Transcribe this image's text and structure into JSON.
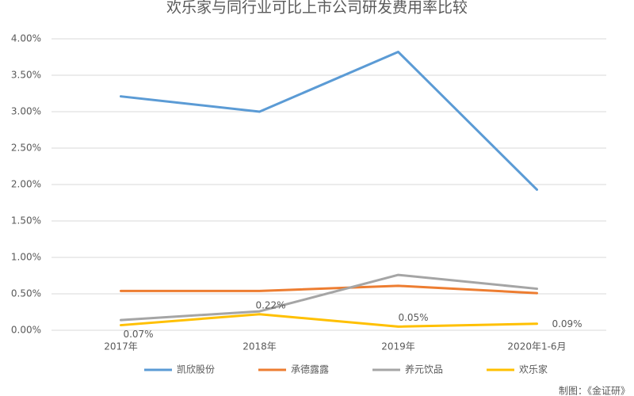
{
  "chart_data": {
    "type": "line",
    "title": "欢乐家与同行业可比上市公司研发费用率比较",
    "categories": [
      "2017年",
      "2018年",
      "2019年",
      "2020年1-6月"
    ],
    "series": [
      {
        "name": "凯欣股份",
        "color": "#5b9bd5",
        "values": [
          3.21,
          3.0,
          3.82,
          1.93
        ]
      },
      {
        "name": "承德露露",
        "color": "#ed7d31",
        "values": [
          0.54,
          0.54,
          0.61,
          0.51
        ]
      },
      {
        "name": "养元饮品",
        "color": "#a5a5a5",
        "values": [
          0.14,
          0.26,
          0.76,
          0.57
        ]
      },
      {
        "name": "欢乐家",
        "color": "#ffc000",
        "values": [
          0.07,
          0.22,
          0.05,
          0.09
        ],
        "value_labels": [
          "0.07%",
          "0.22%",
          "0.05%",
          "0.09%"
        ]
      }
    ],
    "ylim": [
      0,
      4
    ],
    "yticks": [
      {
        "value": 0,
        "label": "0.00%"
      },
      {
        "value": 0.5,
        "label": "0.50%"
      },
      {
        "value": 1,
        "label": "1.00%"
      },
      {
        "value": 1.5,
        "label": "1.50%"
      },
      {
        "value": 2,
        "label": "2.00%"
      },
      {
        "value": 2.5,
        "label": "2.50%"
      },
      {
        "value": 3,
        "label": "3.00%"
      },
      {
        "value": 3.5,
        "label": "3.50%"
      },
      {
        "value": 4,
        "label": "4.00%"
      }
    ],
    "grid": true,
    "source": "制图：《金证研》"
  }
}
